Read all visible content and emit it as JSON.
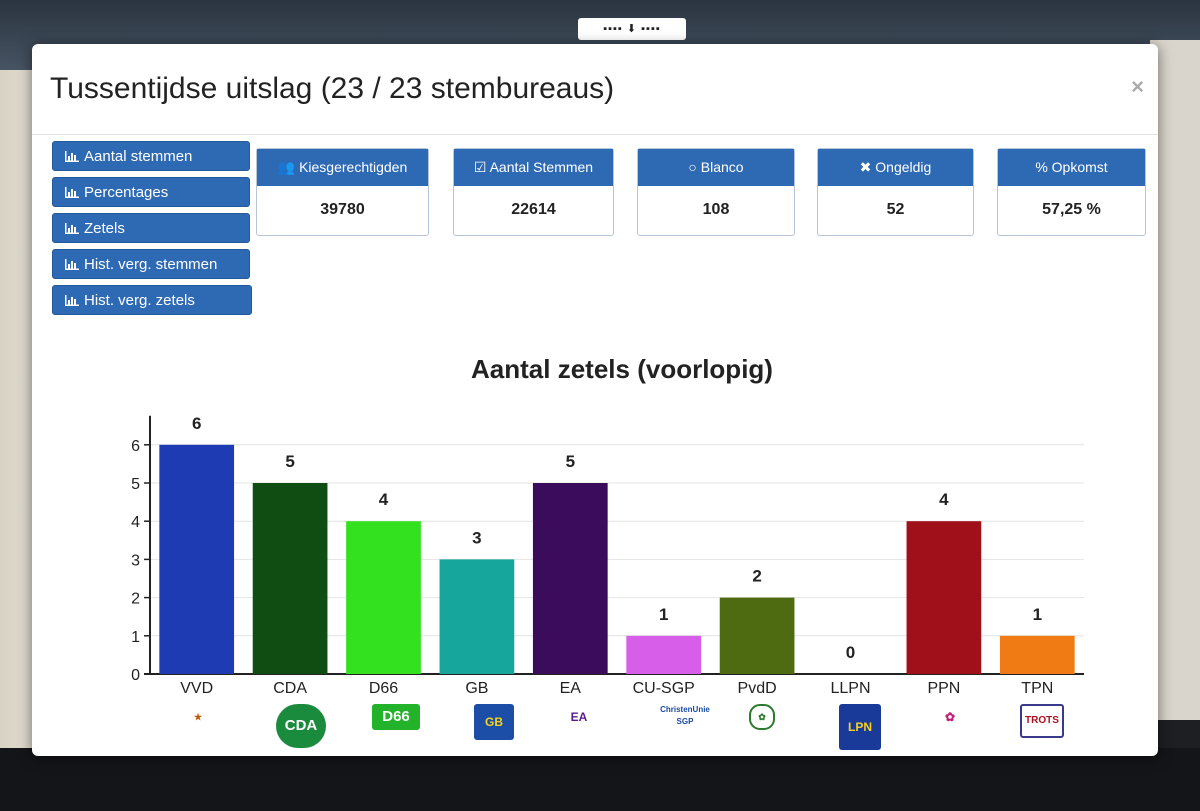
{
  "modal": {
    "title": "Tussentijdse uitslag (23 / 23 stembureaus)",
    "close_glyph": "×"
  },
  "side_buttons": [
    {
      "label": "Aantal stemmen",
      "icon": "bar-chart-icon"
    },
    {
      "label": "Percentages",
      "icon": "bar-chart-icon"
    },
    {
      "label": "Zetels",
      "icon": "bar-chart-icon"
    },
    {
      "label": "Hist. verg. stemmen",
      "icon": "bar-chart-icon"
    },
    {
      "label": "Hist. verg. zetels",
      "icon": "bar-chart-icon"
    }
  ],
  "stats": [
    {
      "label": "Kiesgerechtigden",
      "value": "39780",
      "icon": "users-icon"
    },
    {
      "label": "Aantal Stemmen",
      "value": "22614",
      "icon": "checkbox-icon"
    },
    {
      "label": "Blanco",
      "value": "108",
      "icon": "circle-icon"
    },
    {
      "label": "Ongeldig",
      "value": "52",
      "icon": "cross-icon"
    },
    {
      "label": "Opkomst",
      "value": "57,25 %",
      "icon": "percent-icon"
    }
  ],
  "logos": {
    "cda": "CDA",
    "d66": "D66",
    "gb": "GB",
    "ea": "EA",
    "cusgp": "ChristenUnie SGP",
    "llpn": "LPN",
    "tpn": "TROTS"
  },
  "colors": {
    "button_blue": "#2e6ab3"
  },
  "chart_data": {
    "type": "bar",
    "title": "Aantal zetels (voorlopig)",
    "categories": [
      "VVD",
      "CDA",
      "D66",
      "GB",
      "EA",
      "CU-SGP",
      "PvdD",
      "LLPN",
      "PPN",
      "TPN"
    ],
    "values": [
      6,
      5,
      4,
      3,
      5,
      1,
      2,
      0,
      4,
      1
    ],
    "colors": [
      "#1f3bb3",
      "#0f4d12",
      "#33e11f",
      "#17a69c",
      "#3b0c5c",
      "#d75ee8",
      "#4e6b12",
      "#1a1a99",
      "#a0101a",
      "#f07a14"
    ],
    "y_ticks": [
      0,
      1,
      2,
      3,
      4,
      5,
      6
    ],
    "ylim": [
      0,
      6.5
    ],
    "xlabel": "",
    "ylabel": "",
    "grid": true,
    "legend": "none"
  }
}
